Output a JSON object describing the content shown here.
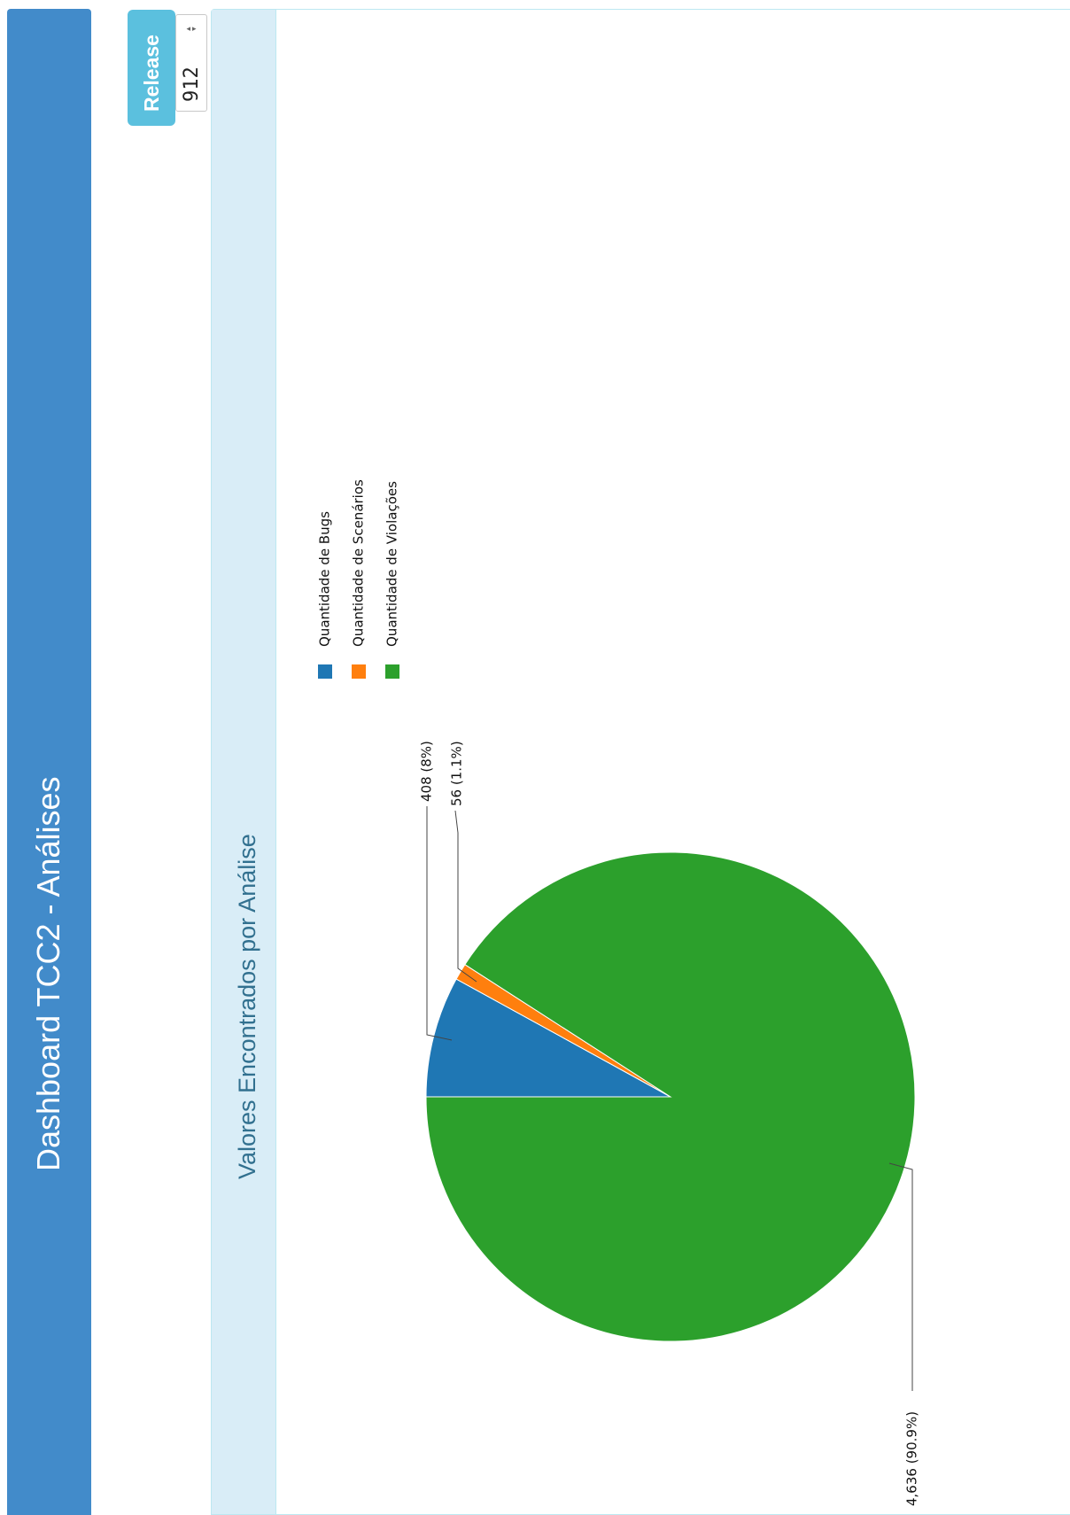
{
  "navbar": {
    "title": "Dashboard TCC2 - Análises"
  },
  "release": {
    "button_label": "Release",
    "value": "912"
  },
  "panel": {
    "title": "Valores Encontrados por Análise"
  },
  "chart_data": {
    "type": "pie",
    "title": "Valores Encontrados por Análise",
    "labels": [
      "Quantidade de Bugs",
      "Quantidade de Scenários",
      "Quantidade de Violações"
    ],
    "values": [
      408,
      56,
      4636
    ],
    "data_labels": [
      "408 (8%)",
      "56 (1.1%)",
      "4,636 (90.9%)"
    ],
    "colors": [
      "#1f77b4",
      "#ff7f0e",
      "#2ca02c"
    ],
    "legend": {
      "position": "top"
    }
  }
}
